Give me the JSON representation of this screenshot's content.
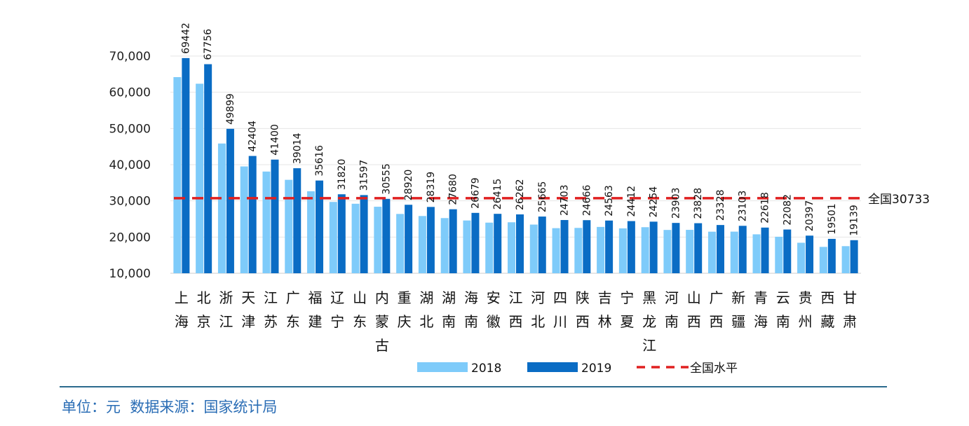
{
  "chart_data": {
    "type": "bar",
    "categories": [
      "上海",
      "北京",
      "浙江",
      "天津",
      "江苏",
      "广东",
      "福建",
      "辽宁",
      "山东",
      "内蒙古",
      "重庆",
      "湖北",
      "湖南",
      "海南",
      "安徽",
      "江西",
      "河北",
      "四川",
      "陕西",
      "吉林",
      "宁夏",
      "黑龙江",
      "河南",
      "山西",
      "广西",
      "新疆",
      "青海",
      "云南",
      "贵州",
      "西藏",
      "甘肃"
    ],
    "series": [
      {
        "name": "2018",
        "color": "#7ecbfa",
        "values": [
          64183,
          62361,
          45840,
          39506,
          38096,
          35810,
          32644,
          29701,
          29205,
          28376,
          26386,
          25815,
          25241,
          24579,
          23984,
          24080,
          23446,
          22461,
          22528,
          22798,
          22400,
          22726,
          21964,
          21990,
          21485,
          21500,
          20757,
          20084,
          18430,
          17286,
          17488
        ]
      },
      {
        "name": "2019",
        "color": "#0a6cc4",
        "values": [
          69442,
          67756,
          49899,
          42404,
          41400,
          39014,
          35616,
          31820,
          31597,
          30555,
          28920,
          28319,
          27680,
          26679,
          26415,
          26262,
          25665,
          24703,
          24666,
          24563,
          24412,
          24254,
          23903,
          23828,
          23328,
          23103,
          22618,
          22082,
          20397,
          19501,
          19139
        ]
      }
    ],
    "reference_line": {
      "name": "全国水平",
      "value": 30733,
      "label": "全国30733",
      "color": "#e02020",
      "style": "dashed"
    },
    "ylim": [
      10000,
      70000
    ],
    "yticks": [
      "10,000",
      "20,000",
      "30,000",
      "40,000",
      "50,000",
      "60,000",
      "70,000"
    ],
    "grid": true,
    "legend_placement": "bottom",
    "data_labels": "2019 series, rotated vertical"
  },
  "footer": {
    "text": "单位：元  数据来源：国家统计局",
    "color": "#2a6db5"
  }
}
